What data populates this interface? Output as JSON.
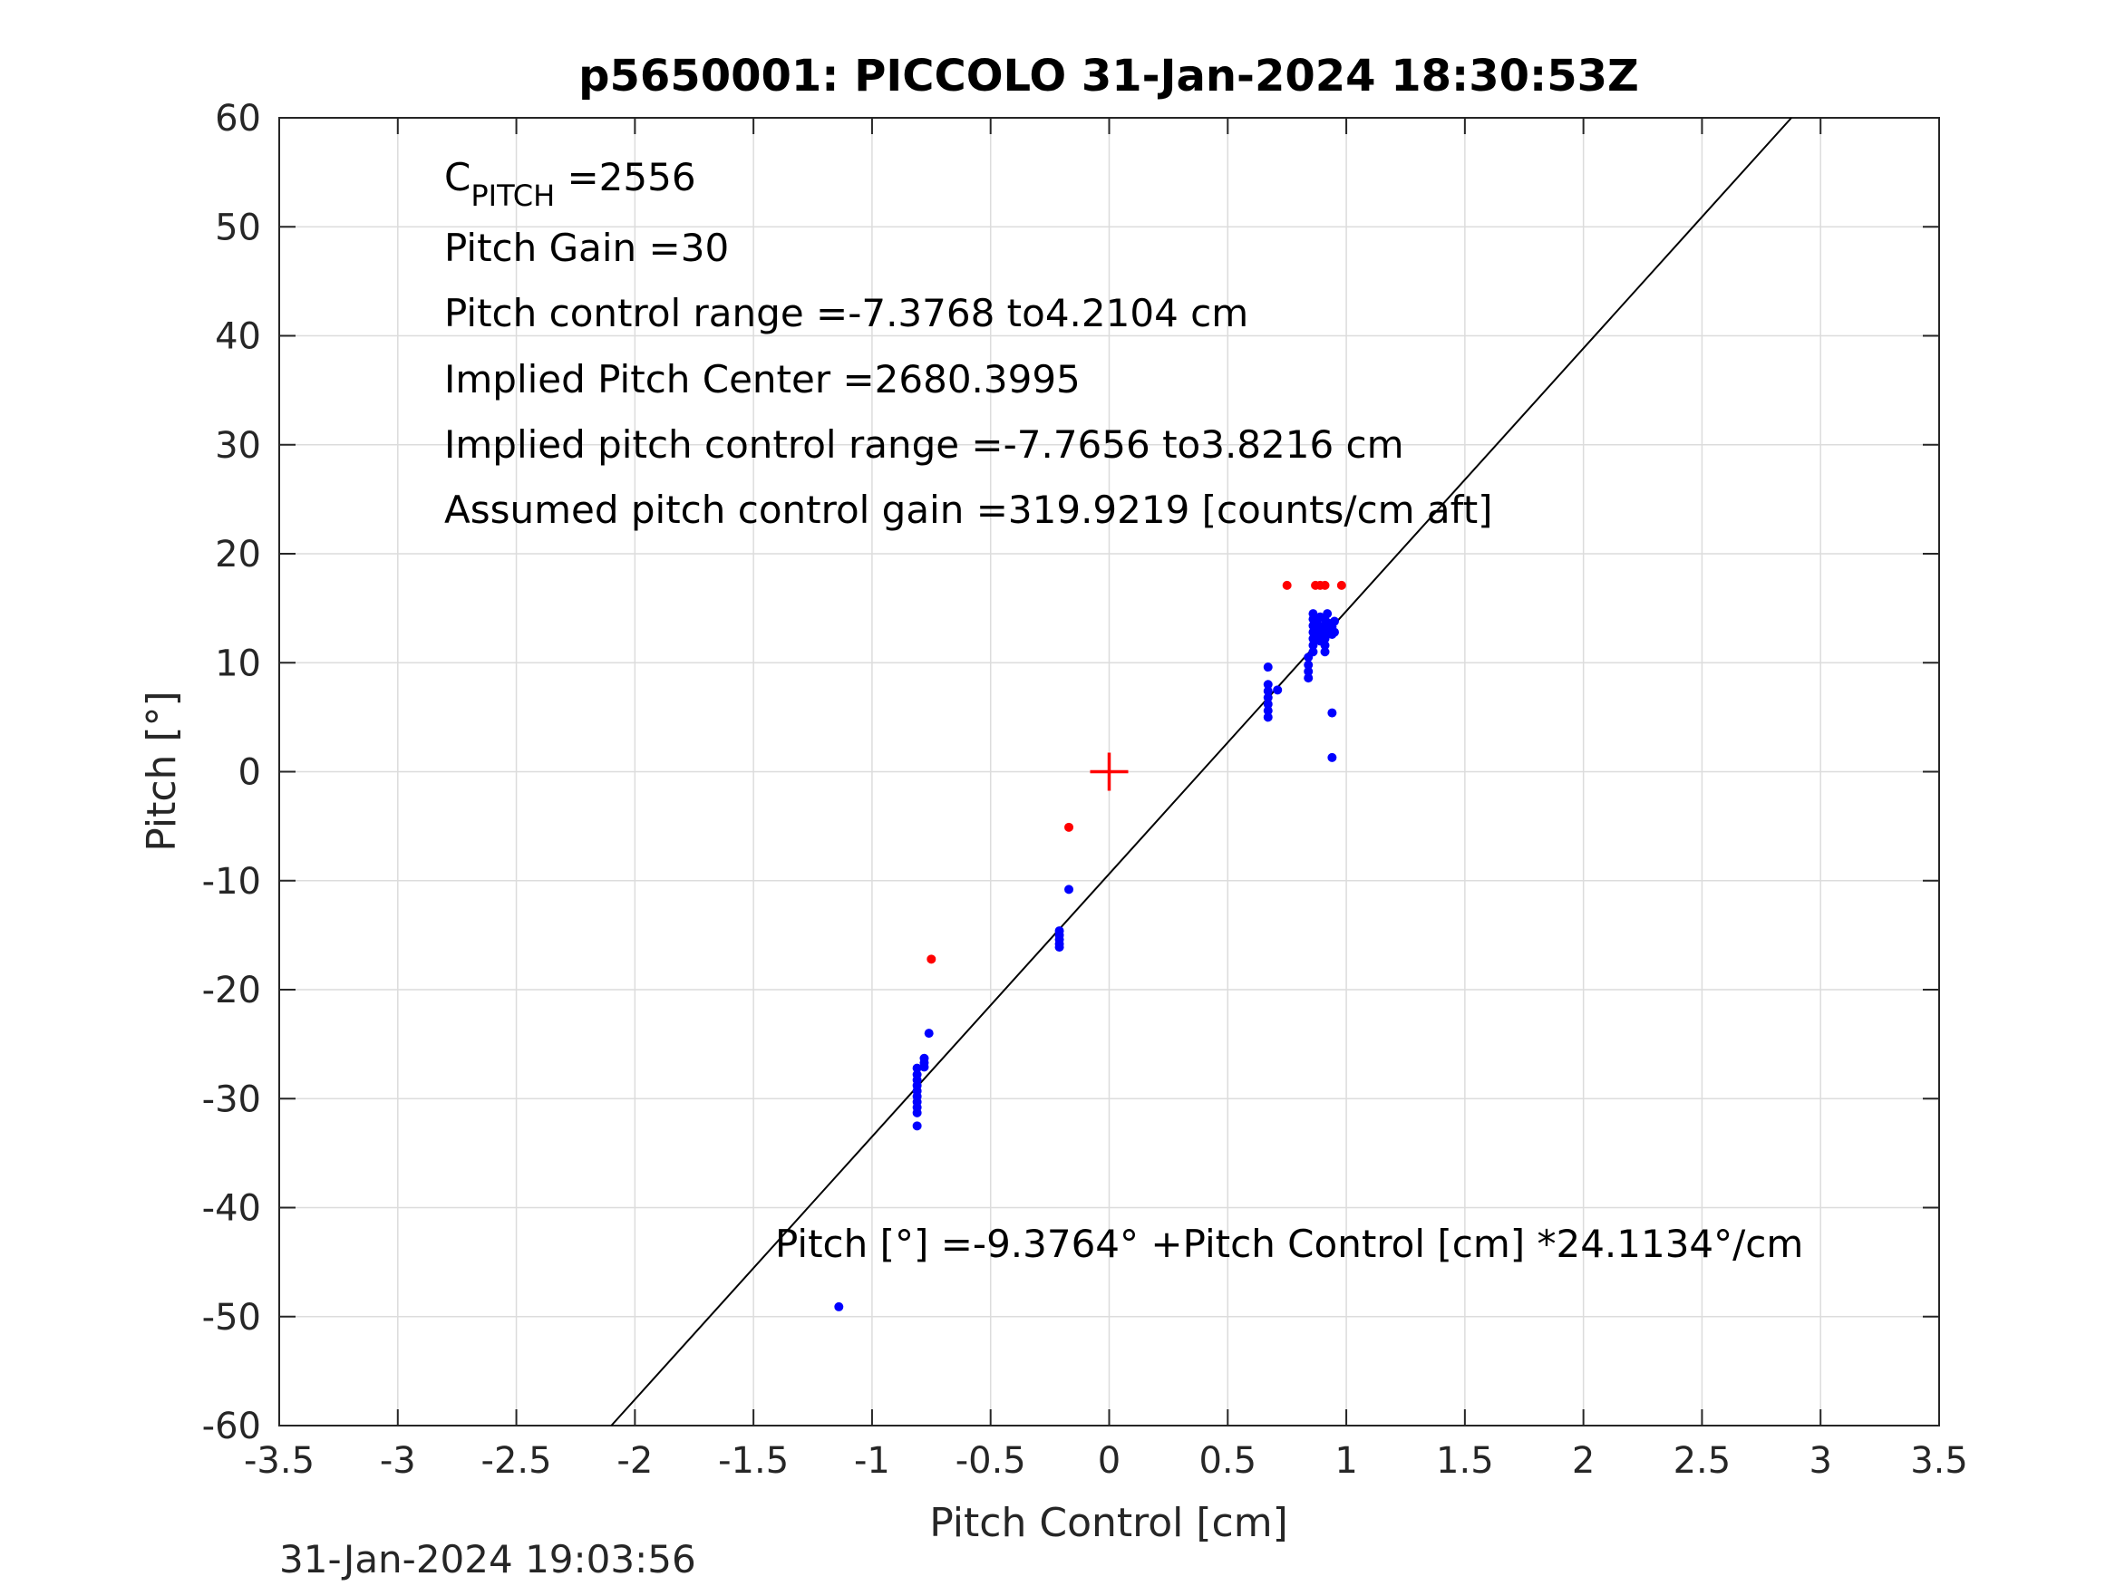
{
  "chart_data": {
    "type": "scatter",
    "title": "p5650001: PICCOLO 31-Jan-2024 18:30:53Z",
    "xlabel": "Pitch Control [cm]",
    "ylabel": "Pitch [°]",
    "xlim": [
      -3.5,
      3.5
    ],
    "ylim": [
      -60,
      60
    ],
    "xticks": [
      -3.5,
      -3,
      -2.5,
      -2,
      -1.5,
      -1,
      -0.5,
      0,
      0.5,
      1,
      1.5,
      2,
      2.5,
      3,
      3.5
    ],
    "xtick_labels": [
      "-3.5",
      "-3",
      "-2.5",
      "-2",
      "-1.5",
      "-1",
      "-0.5",
      "0",
      "0.5",
      "1",
      "1.5",
      "2",
      "2.5",
      "3",
      "3.5"
    ],
    "yticks": [
      -60,
      -50,
      -40,
      -30,
      -20,
      -10,
      0,
      10,
      20,
      30,
      40,
      50,
      60
    ],
    "ytick_labels": [
      "-60",
      "-50",
      "-40",
      "-30",
      "-20",
      "-10",
      "0",
      "10",
      "20",
      "30",
      "40",
      "50",
      "60"
    ],
    "grid": true,
    "annotations": {
      "cpitch_main": "C",
      "cpitch_sub": "PITCH",
      "cpitch_value": " =2556",
      "pitch_gain": "Pitch Gain =30",
      "control_range": "Pitch control range =-7.3768 to4.2104 cm",
      "implied_center": "Implied Pitch Center =2680.3995",
      "implied_range": "Implied pitch control range =-7.7656 to3.8216 cm",
      "assumed_gain": "Assumed pitch control gain =319.9219 [counts/cm aft]",
      "fit_equation": "Pitch [°] =-9.3764° +Pitch Control [cm] *24.1134°/cm"
    },
    "timestamp": "31-Jan-2024 19:03:56",
    "fit_line": {
      "intercept": -9.3764,
      "slope": 24.1134,
      "color": "#000000"
    },
    "center_marker": {
      "x": 0,
      "y": 0,
      "color": "#ff0000"
    },
    "series": [
      {
        "color": "#0000ff",
        "points": [
          [
            -1.14,
            -49.1
          ],
          [
            -0.81,
            -27.2
          ],
          [
            -0.81,
            -27.8
          ],
          [
            -0.81,
            -28.3
          ],
          [
            -0.81,
            -28.8
          ],
          [
            -0.81,
            -29.3
          ],
          [
            -0.81,
            -29.8
          ],
          [
            -0.81,
            -30.3
          ],
          [
            -0.81,
            -30.8
          ],
          [
            -0.81,
            -31.3
          ],
          [
            -0.81,
            -32.5
          ],
          [
            -0.78,
            -26.3
          ],
          [
            -0.78,
            -26.7
          ],
          [
            -0.78,
            -27.1
          ],
          [
            -0.76,
            -24.0
          ],
          [
            -0.21,
            -14.6
          ],
          [
            -0.21,
            -15.0
          ],
          [
            -0.21,
            -15.4
          ],
          [
            -0.21,
            -15.8
          ],
          [
            -0.21,
            -16.1
          ],
          [
            -0.17,
            -10.8
          ],
          [
            0.67,
            9.6
          ],
          [
            0.67,
            8.0
          ],
          [
            0.67,
            7.4
          ],
          [
            0.67,
            6.8
          ],
          [
            0.67,
            6.2
          ],
          [
            0.67,
            5.6
          ],
          [
            0.67,
            5.0
          ],
          [
            0.71,
            7.5
          ],
          [
            0.84,
            10.5
          ],
          [
            0.84,
            9.8
          ],
          [
            0.84,
            9.2
          ],
          [
            0.84,
            8.6
          ],
          [
            0.86,
            11.0
          ],
          [
            0.86,
            11.6
          ],
          [
            0.86,
            12.2
          ],
          [
            0.86,
            12.8
          ],
          [
            0.86,
            13.4
          ],
          [
            0.86,
            14.0
          ],
          [
            0.86,
            14.5
          ],
          [
            0.88,
            12.5
          ],
          [
            0.88,
            13.0
          ],
          [
            0.88,
            13.5
          ],
          [
            0.89,
            12.0
          ],
          [
            0.89,
            14.2
          ],
          [
            0.91,
            11.0
          ],
          [
            0.91,
            11.6
          ],
          [
            0.91,
            12.2
          ],
          [
            0.91,
            12.8
          ],
          [
            0.91,
            13.4
          ],
          [
            0.91,
            14.0
          ],
          [
            0.92,
            14.5
          ],
          [
            0.93,
            13.0
          ],
          [
            0.93,
            13.6
          ],
          [
            0.94,
            12.6
          ],
          [
            0.94,
            13.3
          ],
          [
            0.95,
            13.8
          ],
          [
            0.95,
            12.8
          ],
          [
            0.94,
            5.4
          ],
          [
            0.94,
            1.3
          ]
        ]
      },
      {
        "color": "#ff0000",
        "points": [
          [
            -0.75,
            -17.2
          ],
          [
            -0.17,
            -5.1
          ],
          [
            0.75,
            17.1
          ],
          [
            0.87,
            17.1
          ],
          [
            0.89,
            17.1
          ],
          [
            0.91,
            17.1
          ],
          [
            0.98,
            17.1
          ]
        ]
      }
    ]
  }
}
